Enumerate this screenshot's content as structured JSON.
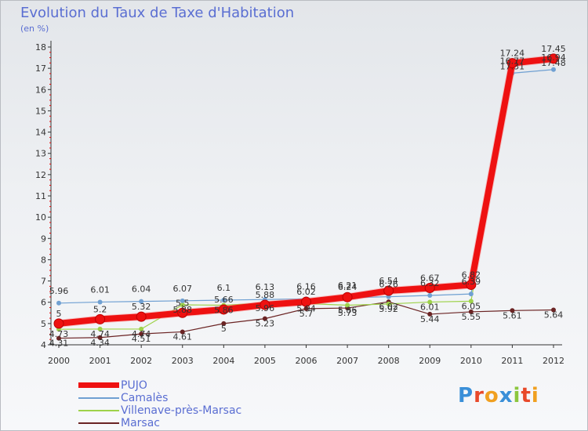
{
  "title": "Evolution du Taux de Taxe d'Habitation",
  "subtitle": "(en %)",
  "logo_text": "Proxiti",
  "colors": {
    "background_top": "#e3e6ea",
    "text": "#5a6ed2"
  },
  "chart_data": {
    "type": "line",
    "x": [
      "2000",
      "2001",
      "2002",
      "2003",
      "2004",
      "2005",
      "2006",
      "2007",
      "2008",
      "2009",
      "2010",
      "2011",
      "2012"
    ],
    "ylim": [
      4,
      18
    ],
    "yticks": [
      4,
      5,
      6,
      7,
      8,
      9,
      10,
      11,
      12,
      13,
      14,
      15,
      16,
      17,
      18
    ],
    "grid": false,
    "legend_position": "bottom-left",
    "series": [
      {
        "name": "PUJO",
        "color": "#ee1111",
        "width": 8,
        "values": [
          5.0,
          5.2,
          5.32,
          5.5,
          5.66,
          5.88,
          6.02,
          6.24,
          6.54,
          6.67,
          6.82,
          17.24,
          17.45
        ],
        "labels": [
          "5",
          "5.2",
          "5.32",
          "5.5",
          "5.66",
          "5.88",
          "6.02",
          "6.24",
          "6.54",
          "6.67",
          "6.82",
          "17.24",
          "17.45"
        ]
      },
      {
        "name": "Camalès",
        "color": "#6fa0d2",
        "width": 1.2,
        "values": [
          5.96,
          6.01,
          6.04,
          6.07,
          6.1,
          6.13,
          6.16,
          6.21,
          6.26,
          6.32,
          6.39,
          16.77,
          16.94
        ],
        "labels": [
          "5.96",
          "6.01",
          "6.04",
          "6.07",
          "6.1",
          "6.13",
          "6.16",
          "6.21",
          "6.26",
          "6.32",
          "6.39",
          "16.77",
          "16.94"
        ]
      },
      {
        "name": "Villenave-près-Marsac",
        "color": "#9ed24a",
        "width": 1.2,
        "values": [
          4.73,
          4.74,
          4.74,
          5.88,
          5.86,
          5.96,
          5.94,
          5.86,
          5.92,
          6.01,
          6.05,
          17.31,
          17.48
        ],
        "labels": [
          "4.73",
          "4.74",
          "4.74",
          "5.88",
          "5.86",
          "5.96",
          "5.94",
          "5.86",
          "5.92",
          "6.01",
          "6.05",
          "17.31",
          "17.48"
        ]
      },
      {
        "name": "Marsac",
        "color": "#6b2424",
        "width": 1.2,
        "values": [
          4.31,
          4.34,
          4.51,
          4.61,
          5.0,
          5.23,
          5.7,
          5.73,
          6.02,
          5.44,
          5.55,
          5.61,
          5.64
        ],
        "labels": [
          "4.31",
          "4.34",
          "4.51",
          "4.61",
          "5",
          "5.23",
          "5.7",
          "5.73",
          "6.02",
          "5.44",
          "5.55",
          "5.61",
          "5.64"
        ]
      }
    ]
  }
}
